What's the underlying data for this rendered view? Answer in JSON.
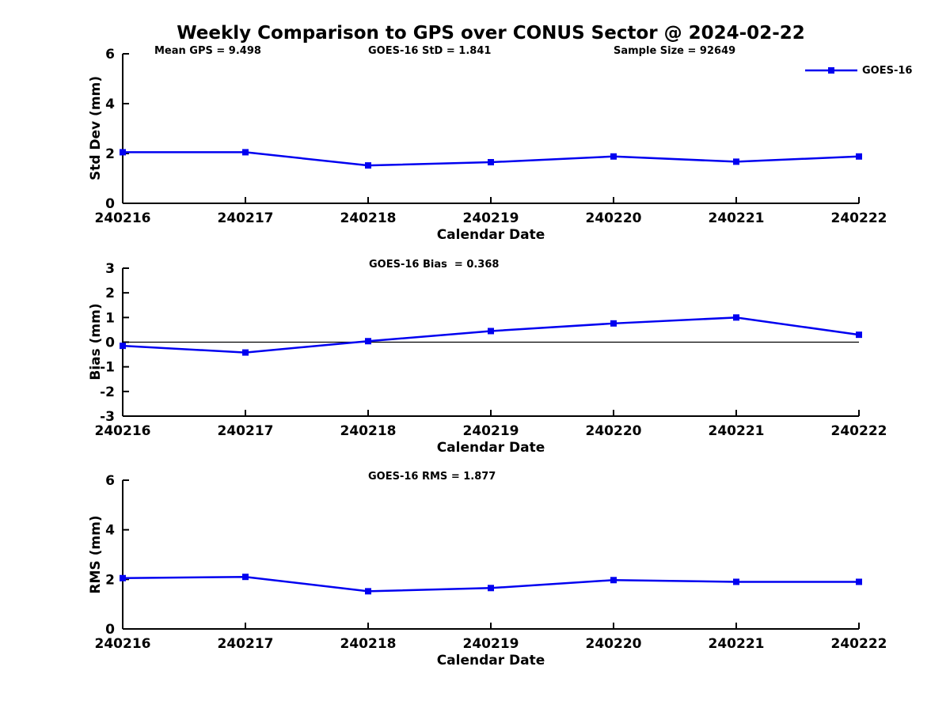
{
  "title": "Weekly Comparison to GPS over CONUS Sector @ 2024-02-22",
  "colors": {
    "line": "#0000f0",
    "axis": "#000000",
    "background": "#ffffff"
  },
  "legend": {
    "label": "GOES-16"
  },
  "chart_data": [
    {
      "type": "line",
      "title": "Std Dev subplot",
      "x": [
        "240216",
        "240217",
        "240218",
        "240219",
        "240220",
        "240221",
        "240222"
      ],
      "series": [
        {
          "name": "GOES-16",
          "values": [
            2.05,
            2.05,
            1.52,
            1.65,
            1.88,
            1.67,
            1.88
          ]
        }
      ],
      "xlabel": "Calendar Date",
      "ylabel": "Std Dev (mm)",
      "ylim": [
        0,
        6
      ],
      "yticks": [
        0,
        2,
        4,
        6
      ],
      "grid": false,
      "zero_line": false,
      "legend_position": "top-right-outside",
      "marker": "square",
      "annotations": [
        "Mean GPS = 9.498",
        "GOES-16 StD = 1.841",
        "Sample Size = 92649"
      ]
    },
    {
      "type": "line",
      "title": "Bias subplot",
      "x": [
        "240216",
        "240217",
        "240218",
        "240219",
        "240220",
        "240221",
        "240222"
      ],
      "series": [
        {
          "name": "GOES-16",
          "values": [
            -0.15,
            -0.42,
            0.04,
            0.45,
            0.76,
            1.0,
            0.3
          ]
        }
      ],
      "xlabel": "Calendar Date",
      "ylabel": "Bias (mm)",
      "ylim": [
        -3,
        3
      ],
      "yticks": [
        -3,
        -2,
        -1,
        0,
        1,
        2,
        3
      ],
      "grid": false,
      "zero_line": true,
      "marker": "square",
      "annotations": [
        "GOES-16 Bias  = 0.368"
      ]
    },
    {
      "type": "line",
      "title": "RMS subplot",
      "x": [
        "240216",
        "240217",
        "240218",
        "240219",
        "240220",
        "240221",
        "240222"
      ],
      "series": [
        {
          "name": "GOES-16",
          "values": [
            2.05,
            2.1,
            1.52,
            1.65,
            1.97,
            1.9,
            1.9
          ]
        }
      ],
      "xlabel": "Calendar Date",
      "ylabel": "RMS (mm)",
      "ylim": [
        0,
        6
      ],
      "yticks": [
        0,
        2,
        4,
        6
      ],
      "grid": false,
      "zero_line": false,
      "marker": "square",
      "annotations": [
        "GOES-16 RMS = 1.877"
      ]
    }
  ]
}
